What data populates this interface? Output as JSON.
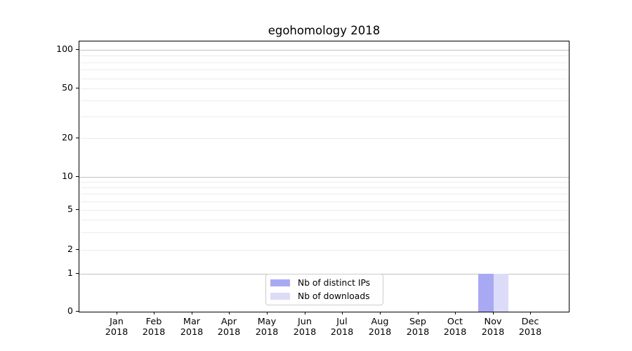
{
  "chart_data": {
    "type": "bar",
    "title": "egohomology 2018",
    "categories": [
      "Jan 2018",
      "Feb 2018",
      "Mar 2018",
      "Apr 2018",
      "May 2018",
      "Jun 2018",
      "Jul 2018",
      "Aug 2018",
      "Sep 2018",
      "Oct 2018",
      "Nov 2018",
      "Dec 2018"
    ],
    "series": [
      {
        "name": "Nb of distinct IPs",
        "color": "#a9a9f3",
        "values": [
          0,
          0,
          0,
          0,
          0,
          0,
          0,
          0,
          0,
          0,
          1,
          0
        ]
      },
      {
        "name": "Nb of downloads",
        "color": "#dcdcf9",
        "values": [
          0,
          0,
          0,
          0,
          0,
          0,
          0,
          0,
          0,
          0,
          1,
          0
        ]
      }
    ],
    "yscale": "symlog",
    "ylim": [
      0,
      115
    ],
    "ytick_labels": [
      "0",
      "1",
      "2",
      "5",
      "10",
      "20",
      "50",
      "100"
    ],
    "grid": "both",
    "legend_position": "lower center",
    "xlabel": "",
    "ylabel": ""
  },
  "colors": {
    "background": "#ffffff",
    "spine": "#000000",
    "grid_major": "#c2c2c2",
    "grid_minor": "#ececec",
    "legend_border": "#cccccc",
    "series_ips": "#a9a9f3",
    "series_downloads": "#dcdcf9"
  }
}
